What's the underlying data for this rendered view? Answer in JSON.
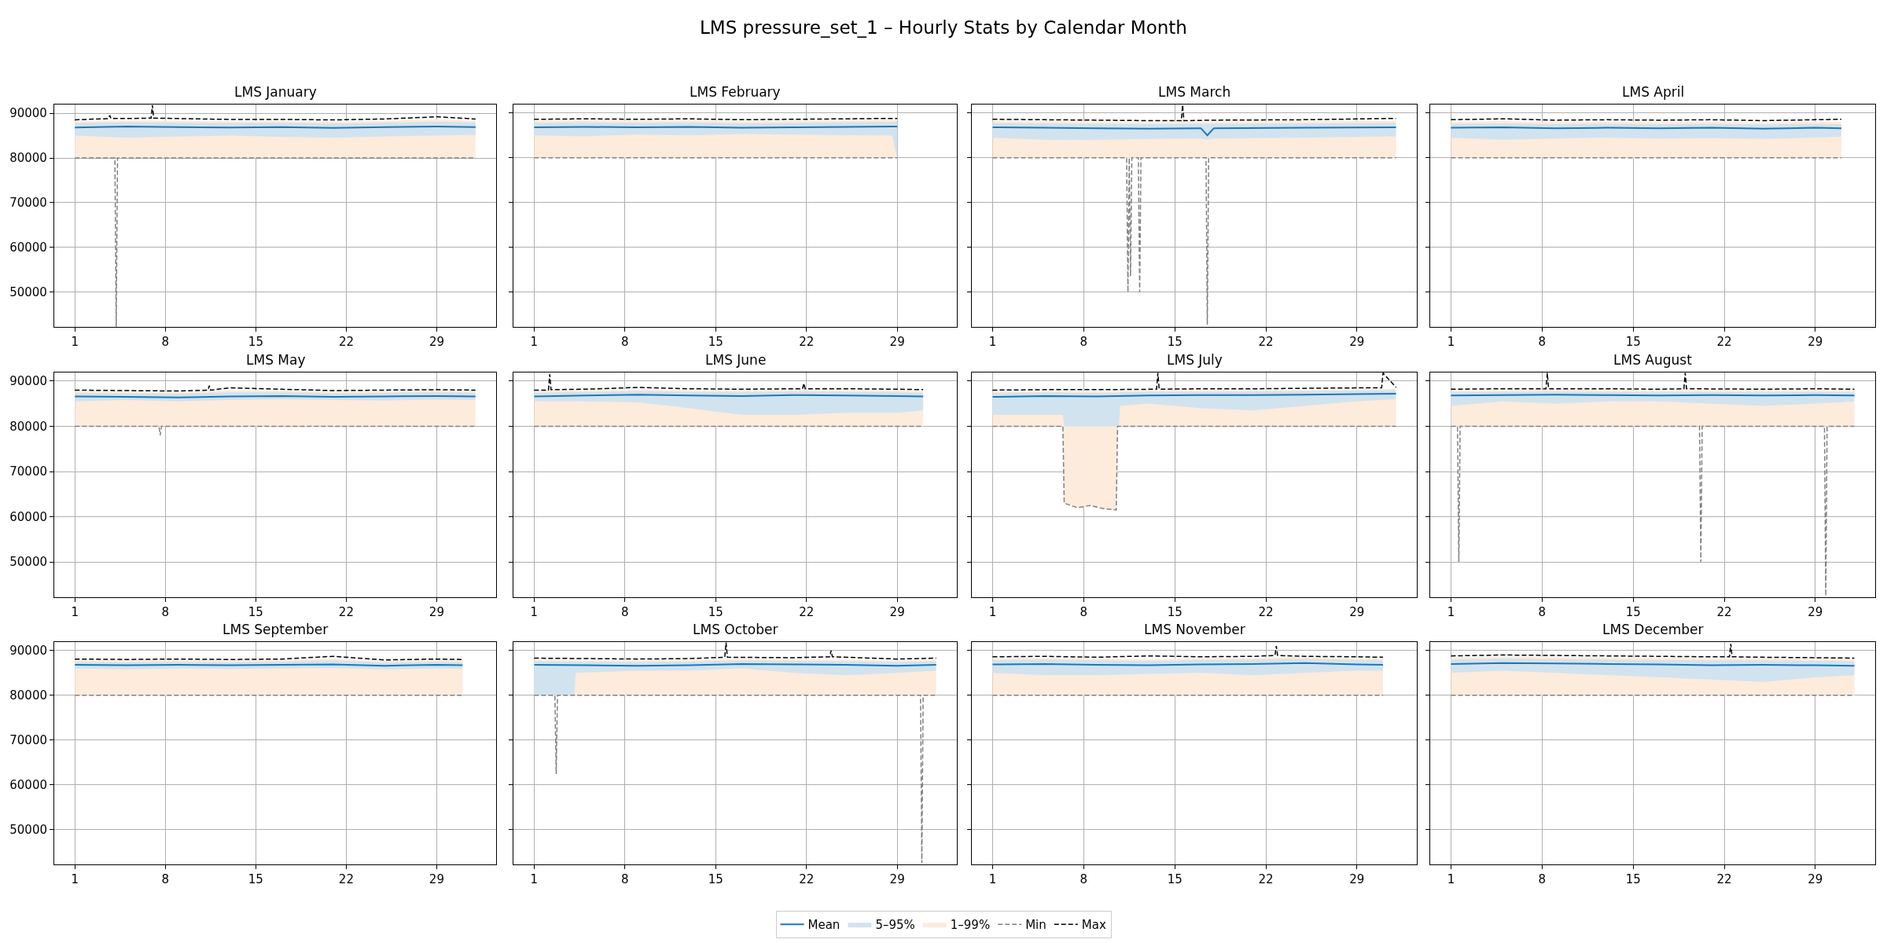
{
  "chart_data": [
    {
      "type": "other",
      "title": "LMS pressure_set_1 – Hourly Stats by Calendar Month"
    },
    {
      "type": "line",
      "title": "LMS January",
      "x": [
        1,
        5,
        9,
        13,
        17,
        21,
        25,
        29,
        32
      ],
      "xlim": [
        -0.6,
        33.6
      ],
      "xticks": [
        1,
        8,
        15,
        22,
        29
      ],
      "ylim": [
        42200,
        91900
      ],
      "yticks": [
        50000,
        60000,
        70000,
        80000,
        90000
      ],
      "grid": true,
      "legend": "bottom",
      "series": [
        {
          "name": "Mean",
          "type": "line",
          "color": "#1f77b4",
          "values": [
            86800,
            87000,
            86900,
            86800,
            86900,
            86700,
            86900,
            87000,
            86900
          ]
        },
        {
          "name": "5–95%",
          "type": "line",
          "color": "#d2e3f0",
          "values": [
            null,
            null,
            null,
            null,
            null,
            null,
            null,
            null,
            null
          ],
          "lower": [
            85000,
            84500,
            84800,
            85000,
            84700,
            84500,
            84800,
            85000,
            85200
          ],
          "upper": [
            87800,
            88000,
            87900,
            87800,
            87900,
            87700,
            87900,
            88100,
            87900
          ]
        },
        {
          "name": "1–99%",
          "type": "line",
          "color": "#fdebdc",
          "values": [
            null,
            null,
            null,
            null,
            null,
            null,
            null,
            null,
            null
          ],
          "lower": [
            80000,
            80000,
            80000,
            80000,
            80000,
            80000,
            80000,
            80000,
            80000
          ],
          "upper": [
            88200,
            88400,
            88300,
            88200,
            88300,
            88100,
            88300,
            88600,
            88300
          ]
        },
        {
          "name": "Min",
          "type": "line",
          "color": "#808080",
          "line_style": "dashed",
          "x": [
            1,
            4.1,
            4.2,
            4.3,
            32
          ],
          "values": [
            80000,
            80000,
            42300,
            80000,
            80000
          ]
        },
        {
          "name": "Max",
          "type": "line",
          "color": "#000000",
          "line_style": "dashed",
          "x": [
            1,
            3.6,
            3.7,
            3.8,
            5,
            6.9,
            7,
            7.1,
            9,
            13,
            17,
            21,
            25,
            29,
            32
          ],
          "values": [
            88500,
            88800,
            89500,
            88800,
            88800,
            88900,
            91800,
            88900,
            88800,
            88600,
            88600,
            88500,
            88700,
            89200,
            88700
          ]
        }
      ]
    },
    {
      "type": "line",
      "title": "LMS February",
      "x": [
        1,
        5,
        9,
        13,
        17,
        21,
        25,
        28.6,
        29
      ],
      "xlim": [
        -0.6,
        33.6
      ],
      "xticks": [
        1,
        8,
        15,
        22,
        29
      ],
      "ylim": [
        42200,
        91900
      ],
      "yticks": [
        50000,
        60000,
        70000,
        80000,
        90000
      ],
      "grid": true,
      "tick_labels": "x",
      "series": [
        {
          "type": "line",
          "color": "#1f77b4",
          "values": [
            86800,
            86900,
            86800,
            86900,
            86700,
            86800,
            86900,
            87000,
            87000
          ]
        },
        {
          "type": "line",
          "color": "#d2e3f0",
          "values": [
            null,
            null,
            null,
            null,
            null,
            null,
            null,
            null,
            null
          ],
          "lower": [
            85000,
            84800,
            85200,
            85000,
            85300,
            85200,
            85000,
            85000,
            80000
          ],
          "upper": [
            87800,
            87900,
            87800,
            87900,
            87700,
            87800,
            87900,
            88000,
            88000
          ]
        },
        {
          "type": "line",
          "color": "#fdebdc",
          "values": [
            null,
            null,
            null,
            null,
            null,
            null,
            null,
            null,
            null
          ],
          "lower": [
            80000,
            80000,
            80000,
            80000,
            80000,
            80000,
            80000,
            80000,
            80000
          ],
          "upper": [
            88300,
            88400,
            88300,
            88400,
            88200,
            88300,
            88400,
            88500,
            88500
          ]
        },
        {
          "type": "line",
          "color": "#808080",
          "line_style": "dashed",
          "x": [
            1,
            29
          ],
          "values": [
            80000,
            80000
          ]
        },
        {
          "type": "line",
          "color": "#000000",
          "line_style": "dashed",
          "x": [
            1,
            5,
            9,
            13,
            17,
            21,
            25,
            28.6,
            29
          ],
          "values": [
            88600,
            88700,
            88600,
            88700,
            88500,
            88600,
            88700,
            88800,
            88800
          ]
        }
      ]
    },
    {
      "type": "line",
      "title": "LMS March",
      "x": [
        1,
        5,
        9,
        13,
        17,
        17.5,
        18,
        25,
        32
      ],
      "xlim": [
        -0.6,
        33.6
      ],
      "xticks": [
        1,
        8,
        15,
        22,
        29
      ],
      "ylim": [
        42200,
        91900
      ],
      "yticks": [
        50000,
        60000,
        70000,
        80000,
        90000
      ],
      "grid": true,
      "tick_labels": "x",
      "series": [
        {
          "type": "line",
          "color": "#1f77b4",
          "values": [
            86800,
            86700,
            86600,
            86500,
            86600,
            85000,
            86600,
            86700,
            86800
          ]
        },
        {
          "type": "line",
          "color": "#d2e3f0",
          "values": [
            null,
            null,
            null,
            null,
            null,
            null,
            null,
            null,
            null
          ],
          "lower": [
            84500,
            84000,
            84000,
            84200,
            84300,
            84000,
            84300,
            84500,
            84800
          ],
          "upper": [
            87800,
            87700,
            87600,
            87500,
            87600,
            87600,
            87600,
            87700,
            87800
          ]
        },
        {
          "type": "line",
          "color": "#fdebdc",
          "values": [
            null,
            null,
            null,
            null,
            null,
            null,
            null,
            null,
            null
          ],
          "lower": [
            80000,
            80000,
            80000,
            80000,
            80000,
            80000,
            80000,
            80000,
            80000
          ],
          "upper": [
            88300,
            88200,
            88100,
            88000,
            88100,
            88100,
            88100,
            88200,
            88300
          ]
        },
        {
          "type": "line",
          "color": "#808080",
          "line_style": "dashed",
          "x": [
            1,
            11.3,
            11.4,
            11.5,
            11.6,
            11.7,
            12.2,
            12.3,
            12.4,
            17.4,
            17.5,
            17.6,
            32
          ],
          "values": [
            80000,
            80000,
            50000,
            80000,
            53500,
            80000,
            80000,
            50000,
            80000,
            80000,
            42700,
            80000,
            80000
          ]
        },
        {
          "type": "line",
          "color": "#000000",
          "line_style": "dashed",
          "x": [
            1,
            5,
            9,
            13,
            15.5,
            15.6,
            15.7,
            18,
            25,
            32
          ],
          "values": [
            88600,
            88500,
            88400,
            88300,
            88300,
            91800,
            88300,
            88400,
            88500,
            88800
          ]
        }
      ]
    },
    {
      "type": "line",
      "title": "LMS April",
      "x": [
        1,
        5,
        9,
        13,
        17,
        21,
        25,
        29,
        31
      ],
      "xlim": [
        -0.6,
        33.6
      ],
      "xticks": [
        1,
        8,
        15,
        22,
        29
      ],
      "ylim": [
        42200,
        91900
      ],
      "yticks": [
        50000,
        60000,
        70000,
        80000,
        90000
      ],
      "grid": true,
      "tick_labels": "x",
      "series": [
        {
          "type": "line",
          "color": "#1f77b4",
          "values": [
            86700,
            86800,
            86600,
            86700,
            86600,
            86700,
            86500,
            86700,
            86600
          ]
        },
        {
          "type": "line",
          "color": "#d2e3f0",
          "values": [
            null,
            null,
            null,
            null,
            null,
            null,
            null,
            null,
            null
          ],
          "lower": [
            84500,
            84000,
            84300,
            84500,
            84300,
            84400,
            84200,
            84500,
            84800
          ],
          "upper": [
            87600,
            87700,
            87500,
            87600,
            87500,
            87600,
            87400,
            87600,
            87500
          ]
        },
        {
          "type": "line",
          "color": "#fdebdc",
          "values": [
            null,
            null,
            null,
            null,
            null,
            null,
            null,
            null,
            null
          ],
          "lower": [
            80000,
            80000,
            80000,
            80000,
            80000,
            80000,
            80000,
            80000,
            80000
          ],
          "upper": [
            88100,
            88200,
            88000,
            88100,
            88000,
            88100,
            87900,
            88100,
            88000
          ]
        },
        {
          "type": "line",
          "color": "#808080",
          "line_style": "dashed",
          "x": [
            1,
            31
          ],
          "values": [
            80000,
            80000
          ]
        },
        {
          "type": "line",
          "color": "#000000",
          "line_style": "dashed",
          "x": [
            1,
            5,
            9,
            13,
            17,
            21,
            25,
            29,
            31
          ],
          "values": [
            88500,
            88700,
            88400,
            88500,
            88400,
            88500,
            88300,
            88500,
            88600
          ]
        }
      ]
    },
    {
      "type": "line",
      "title": "LMS May",
      "x": [
        1,
        5,
        9,
        13,
        17,
        21,
        25,
        29,
        32
      ],
      "xlim": [
        -0.6,
        33.6
      ],
      "xticks": [
        1,
        8,
        15,
        22,
        29
      ],
      "ylim": [
        42200,
        91900
      ],
      "yticks": [
        50000,
        60000,
        70000,
        80000,
        90000
      ],
      "grid": true,
      "series": [
        {
          "type": "line",
          "color": "#1f77b4",
          "values": [
            86600,
            86500,
            86400,
            86600,
            86700,
            86500,
            86600,
            86700,
            86600
          ]
        },
        {
          "type": "line",
          "color": "#d2e3f0",
          "values": [
            null,
            null,
            null,
            null,
            null,
            null,
            null,
            null,
            null
          ],
          "lower": [
            85500,
            85800,
            85500,
            85800,
            86000,
            85800,
            85700,
            85900,
            85800
          ],
          "upper": [
            87400,
            87300,
            87200,
            87500,
            87500,
            87300,
            87400,
            87500,
            87400
          ]
        },
        {
          "type": "line",
          "color": "#fdebdc",
          "values": [
            null,
            null,
            null,
            null,
            null,
            null,
            null,
            null,
            null
          ],
          "lower": [
            80000,
            80000,
            80000,
            80000,
            80000,
            80000,
            80000,
            80000,
            80000
          ],
          "upper": [
            87800,
            87700,
            87600,
            88000,
            87900,
            87700,
            87800,
            87900,
            87800
          ]
        },
        {
          "type": "line",
          "color": "#808080",
          "line_style": "dashed",
          "x": [
            1,
            7.5,
            7.6,
            7.7,
            32
          ],
          "values": [
            80000,
            80000,
            78000,
            80000,
            80000
          ]
        },
        {
          "type": "line",
          "color": "#000000",
          "line_style": "dashed",
          "x": [
            1,
            5,
            9,
            11.3,
            11.4,
            11.5,
            13,
            17,
            21,
            25,
            29,
            32
          ],
          "values": [
            88000,
            87900,
            87800,
            88000,
            89000,
            88000,
            88500,
            88200,
            87900,
            88000,
            88100,
            88000
          ]
        }
      ]
    },
    {
      "type": "line",
      "title": "LMS June",
      "x": [
        1,
        5,
        9,
        13,
        17,
        21,
        25,
        29,
        31
      ],
      "xlim": [
        -0.6,
        33.6
      ],
      "xticks": [
        1,
        8,
        15,
        22,
        29
      ],
      "ylim": [
        42200,
        91900
      ],
      "yticks": [
        50000,
        60000,
        70000,
        80000,
        90000
      ],
      "grid": true,
      "tick_labels": "x",
      "series": [
        {
          "type": "line",
          "color": "#1f77b4",
          "values": [
            86600,
            86800,
            87000,
            86800,
            86700,
            86900,
            86800,
            86700,
            86600
          ]
        },
        {
          "type": "line",
          "color": "#d2e3f0",
          "values": [
            null,
            null,
            null,
            null,
            null,
            null,
            null,
            null,
            null
          ],
          "lower": [
            85500,
            85500,
            85300,
            84000,
            82500,
            82500,
            83000,
            83000,
            83500
          ],
          "upper": [
            87400,
            87600,
            87800,
            87600,
            87500,
            87700,
            87600,
            87500,
            87400
          ]
        },
        {
          "type": "line",
          "color": "#fdebdc",
          "values": [
            null,
            null,
            null,
            null,
            null,
            null,
            null,
            null,
            null
          ],
          "lower": [
            80000,
            80000,
            80000,
            80000,
            80000,
            80000,
            80000,
            80000,
            80000
          ],
          "upper": [
            87800,
            88000,
            88300,
            88000,
            87900,
            88100,
            88000,
            87900,
            87800
          ]
        },
        {
          "type": "line",
          "color": "#808080",
          "line_style": "dashed",
          "x": [
            1,
            31
          ],
          "values": [
            80000,
            80000
          ]
        },
        {
          "type": "line",
          "color": "#000000",
          "line_style": "dashed",
          "x": [
            1,
            2.1,
            2.2,
            2.3,
            5,
            9,
            13,
            17,
            21,
            21.7,
            21.8,
            21.9,
            25,
            29,
            31
          ],
          "values": [
            88000,
            88000,
            91500,
            88100,
            88200,
            88600,
            88300,
            88200,
            88300,
            88300,
            89500,
            88300,
            88300,
            88200,
            88100
          ]
        }
      ]
    },
    {
      "type": "line",
      "title": "LMS July",
      "x": [
        1,
        5,
        9,
        13,
        17,
        21,
        25,
        29,
        32
      ],
      "xlim": [
        -0.6,
        33.6
      ],
      "xticks": [
        1,
        8,
        15,
        22,
        29
      ],
      "ylim": [
        42200,
        91900
      ],
      "yticks": [
        50000,
        60000,
        70000,
        80000,
        90000
      ],
      "grid": true,
      "tick_labels": "x",
      "series": [
        {
          "type": "line",
          "color": "#1f77b4",
          "values": [
            86500,
            86700,
            86600,
            86800,
            86900,
            86900,
            87000,
            87100,
            87200
          ]
        },
        {
          "type": "line",
          "color": "#d2e3f0",
          "x": [
            1,
            6.4,
            6.5,
            10.7,
            10.8,
            13,
            17,
            21,
            25,
            29,
            32
          ],
          "values": [
            null,
            null,
            null,
            null,
            null,
            null,
            null,
            null,
            null,
            null,
            null
          ],
          "lower": [
            82500,
            82500,
            80000,
            80000,
            84500,
            85000,
            84000,
            83500,
            84500,
            85500,
            86000
          ],
          "upper": [
            87300,
            87500,
            87400,
            87400,
            87500,
            87600,
            87600,
            87700,
            87800,
            87900,
            88000
          ]
        },
        {
          "type": "line",
          "color": "#fdebdc",
          "x": [
            1,
            6.4,
            6.5,
            7.5,
            8.5,
            9.5,
            10.5,
            10.6,
            13,
            17,
            21,
            25,
            29,
            32
          ],
          "values": [
            null,
            null,
            null,
            null,
            null,
            null,
            null,
            null,
            null,
            null,
            null,
            null,
            null,
            null
          ],
          "lower": [
            80000,
            80000,
            63000,
            62000,
            62500,
            61800,
            61500,
            80000,
            80000,
            80000,
            80000,
            80000,
            80000,
            80000
          ],
          "upper": [
            87700,
            87800,
            87800,
            87800,
            87800,
            87800,
            87800,
            87800,
            87900,
            88000,
            88000,
            88100,
            88200,
            88300
          ]
        },
        {
          "type": "line",
          "color": "#808080",
          "line_style": "dashed",
          "x": [
            1,
            6.4,
            6.5,
            7.5,
            8.5,
            9.5,
            10.5,
            10.6,
            32
          ],
          "values": [
            80000,
            80000,
            63000,
            62000,
            62500,
            61800,
            61500,
            80000,
            80000
          ]
        },
        {
          "type": "line",
          "color": "#000000",
          "line_style": "dashed",
          "x": [
            1,
            5,
            9,
            13.6,
            13.7,
            13.8,
            17,
            21,
            25,
            29,
            30.9,
            31,
            32
          ],
          "values": [
            88000,
            88100,
            88100,
            88200,
            91800,
            88200,
            88300,
            88300,
            88400,
            88500,
            88500,
            91800,
            88600
          ]
        }
      ]
    },
    {
      "type": "line",
      "title": "LMS August",
      "x": [
        1,
        5,
        9,
        13,
        17,
        21,
        25,
        29,
        32
      ],
      "xlim": [
        -0.6,
        33.6
      ],
      "xticks": [
        1,
        8,
        15,
        22,
        29
      ],
      "ylim": [
        42200,
        91900
      ],
      "yticks": [
        50000,
        60000,
        70000,
        80000,
        90000
      ],
      "grid": true,
      "tick_labels": "x",
      "series": [
        {
          "type": "line",
          "color": "#1f77b4",
          "values": [
            86800,
            86900,
            87000,
            86900,
            86800,
            86900,
            86800,
            86900,
            86800
          ]
        },
        {
          "type": "line",
          "color": "#d2e3f0",
          "values": [
            null,
            null,
            null,
            null,
            null,
            null,
            null,
            null,
            null
          ],
          "lower": [
            84500,
            85500,
            85000,
            85500,
            85500,
            85000,
            84500,
            85000,
            85500
          ],
          "upper": [
            87500,
            87600,
            87700,
            87600,
            87500,
            87600,
            87500,
            87600,
            87500
          ]
        },
        {
          "type": "line",
          "color": "#fdebdc",
          "values": [
            null,
            null,
            null,
            null,
            null,
            null,
            null,
            null,
            null
          ],
          "lower": [
            80000,
            80000,
            80000,
            80000,
            80000,
            80000,
            80000,
            80000,
            80000
          ],
          "upper": [
            87900,
            88000,
            88100,
            88000,
            87900,
            88000,
            87900,
            88000,
            87900
          ]
        },
        {
          "type": "line",
          "color": "#808080",
          "line_style": "dashed",
          "x": [
            1,
            1.5,
            1.6,
            1.7,
            20.1,
            20.2,
            20.3,
            29.7,
            29.8,
            29.9,
            32
          ],
          "values": [
            80000,
            80000,
            50000,
            80000,
            80000,
            50000,
            80000,
            80000,
            42500,
            80000,
            80000
          ]
        },
        {
          "type": "line",
          "color": "#000000",
          "line_style": "dashed",
          "x": [
            1,
            5,
            8.3,
            8.4,
            8.5,
            13,
            17,
            18.9,
            19,
            19.1,
            25,
            29,
            32
          ],
          "values": [
            88200,
            88300,
            88300,
            91800,
            88300,
            88300,
            88200,
            88300,
            91800,
            88300,
            88200,
            88300,
            88200
          ]
        }
      ]
    },
    {
      "type": "line",
      "title": "LMS September",
      "x": [
        1,
        5,
        9,
        13,
        17,
        21,
        25,
        29,
        31
      ],
      "xlim": [
        -0.6,
        33.6
      ],
      "xticks": [
        1,
        8,
        15,
        22,
        29
      ],
      "ylim": [
        42200,
        91900
      ],
      "yticks": [
        50000,
        60000,
        70000,
        80000,
        90000
      ],
      "grid": true,
      "series": [
        {
          "type": "line",
          "color": "#1f77b4",
          "values": [
            86800,
            86700,
            86800,
            86700,
            86800,
            86900,
            86600,
            86800,
            86700
          ]
        },
        {
          "type": "line",
          "color": "#d2e3f0",
          "values": [
            null,
            null,
            null,
            null,
            null,
            null,
            null,
            null,
            null
          ],
          "lower": [
            86000,
            85800,
            86000,
            85900,
            86000,
            86100,
            85800,
            86000,
            85900
          ],
          "upper": [
            87500,
            87400,
            87500,
            87400,
            87500,
            87800,
            87300,
            87500,
            87400
          ]
        },
        {
          "type": "line",
          "color": "#fdebdc",
          "values": [
            null,
            null,
            null,
            null,
            null,
            null,
            null,
            null,
            null
          ],
          "lower": [
            80000,
            80000,
            80000,
            80000,
            80000,
            80000,
            80000,
            80000,
            80000
          ],
          "upper": [
            87900,
            87800,
            87900,
            87800,
            87900,
            88300,
            87700,
            87900,
            87800
          ]
        },
        {
          "type": "line",
          "color": "#808080",
          "line_style": "dashed",
          "x": [
            1,
            31
          ],
          "values": [
            80000,
            80000
          ]
        },
        {
          "type": "line",
          "color": "#000000",
          "line_style": "dashed",
          "x": [
            1,
            5,
            9,
            13,
            17,
            21,
            25,
            29,
            31
          ],
          "values": [
            88100,
            88000,
            88100,
            88000,
            88100,
            88700,
            87900,
            88100,
            88000
          ]
        }
      ]
    },
    {
      "type": "line",
      "title": "LMS October",
      "x": [
        1,
        5,
        9,
        13,
        17,
        21,
        25,
        29,
        32
      ],
      "xlim": [
        -0.6,
        33.6
      ],
      "xticks": [
        1,
        8,
        15,
        22,
        29
      ],
      "ylim": [
        42200,
        91900
      ],
      "yticks": [
        50000,
        60000,
        70000,
        80000,
        90000
      ],
      "grid": true,
      "tick_labels": "x",
      "series": [
        {
          "type": "line",
          "color": "#1f77b4",
          "values": [
            86800,
            86700,
            86600,
            86700,
            87000,
            86900,
            86800,
            86600,
            86800
          ]
        },
        {
          "type": "line",
          "color": "#d2e3f0",
          "x": [
            1,
            4.1,
            4.2,
            9,
            13,
            17,
            21,
            25,
            29,
            32
          ],
          "values": [
            null,
            null,
            null,
            null,
            null,
            null,
            null,
            null,
            null,
            null
          ],
          "lower": [
            80000,
            80000,
            85000,
            85500,
            85500,
            86000,
            85000,
            84500,
            85000,
            85500
          ],
          "upper": [
            87600,
            87500,
            87500,
            87400,
            87500,
            87800,
            87700,
            87600,
            87400,
            87600
          ]
        },
        {
          "type": "line",
          "color": "#fdebdc",
          "values": [
            null,
            null,
            null,
            null,
            null,
            null,
            null,
            null,
            null
          ],
          "lower": [
            80000,
            80000,
            80000,
            80000,
            80000,
            80000,
            80000,
            80000,
            80000
          ],
          "upper": [
            88000,
            87900,
            87800,
            87900,
            88200,
            88100,
            88000,
            87800,
            88000
          ]
        },
        {
          "type": "line",
          "color": "#808080",
          "line_style": "dashed",
          "x": [
            1,
            2.6,
            2.7,
            2.8,
            30.8,
            30.9,
            31,
            32
          ],
          "values": [
            80000,
            80000,
            62400,
            80000,
            80000,
            42500,
            80000,
            80000
          ]
        },
        {
          "type": "line",
          "color": "#000000",
          "line_style": "dashed",
          "x": [
            1,
            5,
            9,
            13,
            15.7,
            15.8,
            15.9,
            21,
            23.8,
            23.9,
            24,
            29,
            32
          ],
          "values": [
            88300,
            88200,
            88100,
            88200,
            88500,
            91800,
            88500,
            88400,
            88600,
            90000,
            88600,
            88100,
            88300
          ]
        }
      ]
    },
    {
      "type": "line",
      "title": "LMS November",
      "x": [
        1,
        5,
        9,
        13,
        17,
        21,
        25,
        29,
        31
      ],
      "xlim": [
        -0.6,
        33.6
      ],
      "xticks": [
        1,
        8,
        15,
        22,
        29
      ],
      "ylim": [
        42200,
        91900
      ],
      "yticks": [
        50000,
        60000,
        70000,
        80000,
        90000
      ],
      "grid": true,
      "tick_labels": "x",
      "series": [
        {
          "type": "line",
          "color": "#1f77b4",
          "values": [
            86900,
            87000,
            86800,
            86700,
            86900,
            87000,
            87200,
            86900,
            86800
          ]
        },
        {
          "type": "line",
          "color": "#d2e3f0",
          "values": [
            null,
            null,
            null,
            null,
            null,
            null,
            null,
            null,
            null
          ],
          "lower": [
            85000,
            84500,
            84500,
            84800,
            85000,
            84500,
            85000,
            85500,
            85500
          ],
          "upper": [
            87900,
            88000,
            87800,
            87700,
            87900,
            88000,
            88200,
            87900,
            87800
          ]
        },
        {
          "type": "line",
          "color": "#fdebdc",
          "values": [
            null,
            null,
            null,
            null,
            null,
            null,
            null,
            null,
            null
          ],
          "lower": [
            80000,
            80000,
            80000,
            80000,
            80000,
            80000,
            80000,
            80000,
            80000
          ],
          "upper": [
            88300,
            88400,
            88200,
            88100,
            88300,
            88400,
            88600,
            88300,
            88200
          ]
        },
        {
          "type": "line",
          "color": "#808080",
          "line_style": "dashed",
          "x": [
            1,
            31
          ],
          "values": [
            80000,
            80000
          ]
        },
        {
          "type": "line",
          "color": "#000000",
          "line_style": "dashed",
          "x": [
            1,
            5,
            9,
            13,
            17,
            21,
            22.7,
            22.8,
            22.9,
            25,
            29,
            31
          ],
          "values": [
            88600,
            88700,
            88500,
            88800,
            88600,
            88700,
            88900,
            91000,
            88900,
            88700,
            88600,
            88500
          ]
        }
      ]
    },
    {
      "type": "line",
      "title": "LMS December",
      "x": [
        1,
        5,
        9,
        13,
        17,
        21,
        25,
        29,
        32
      ],
      "xlim": [
        -0.6,
        33.6
      ],
      "xticks": [
        1,
        8,
        15,
        22,
        29
      ],
      "ylim": [
        42200,
        91900
      ],
      "yticks": [
        50000,
        60000,
        70000,
        80000,
        90000
      ],
      "grid": true,
      "tick_labels": "x",
      "series": [
        {
          "type": "line",
          "color": "#1f77b4",
          "values": [
            87000,
            87200,
            87100,
            87000,
            86900,
            86700,
            86800,
            86700,
            86600
          ]
        },
        {
          "type": "line",
          "color": "#d2e3f0",
          "values": [
            null,
            null,
            null,
            null,
            null,
            null,
            null,
            null,
            null
          ],
          "lower": [
            85000,
            85500,
            85000,
            84500,
            84000,
            83500,
            83000,
            84000,
            84500
          ],
          "upper": [
            88000,
            88200,
            88100,
            88000,
            87900,
            87800,
            87800,
            87700,
            87600
          ]
        },
        {
          "type": "line",
          "color": "#fdebdc",
          "values": [
            null,
            null,
            null,
            null,
            null,
            null,
            null,
            null,
            null
          ],
          "lower": [
            80000,
            80000,
            80000,
            80000,
            80000,
            80000,
            80000,
            80000,
            80000
          ],
          "upper": [
            88500,
            88700,
            88600,
            88500,
            88400,
            88300,
            88300,
            88200,
            88100
          ]
        },
        {
          "type": "line",
          "color": "#808080",
          "line_style": "dashed",
          "x": [
            1,
            32
          ],
          "values": [
            80000,
            80000
          ]
        },
        {
          "type": "line",
          "color": "#000000",
          "line_style": "dashed",
          "x": [
            1,
            5,
            9,
            13,
            17,
            21,
            22.4,
            22.5,
            22.6,
            25,
            29,
            32
          ],
          "values": [
            88800,
            89000,
            88900,
            88800,
            88700,
            88600,
            88600,
            91500,
            88600,
            88500,
            88400,
            88300
          ]
        }
      ]
    }
  ]
}
